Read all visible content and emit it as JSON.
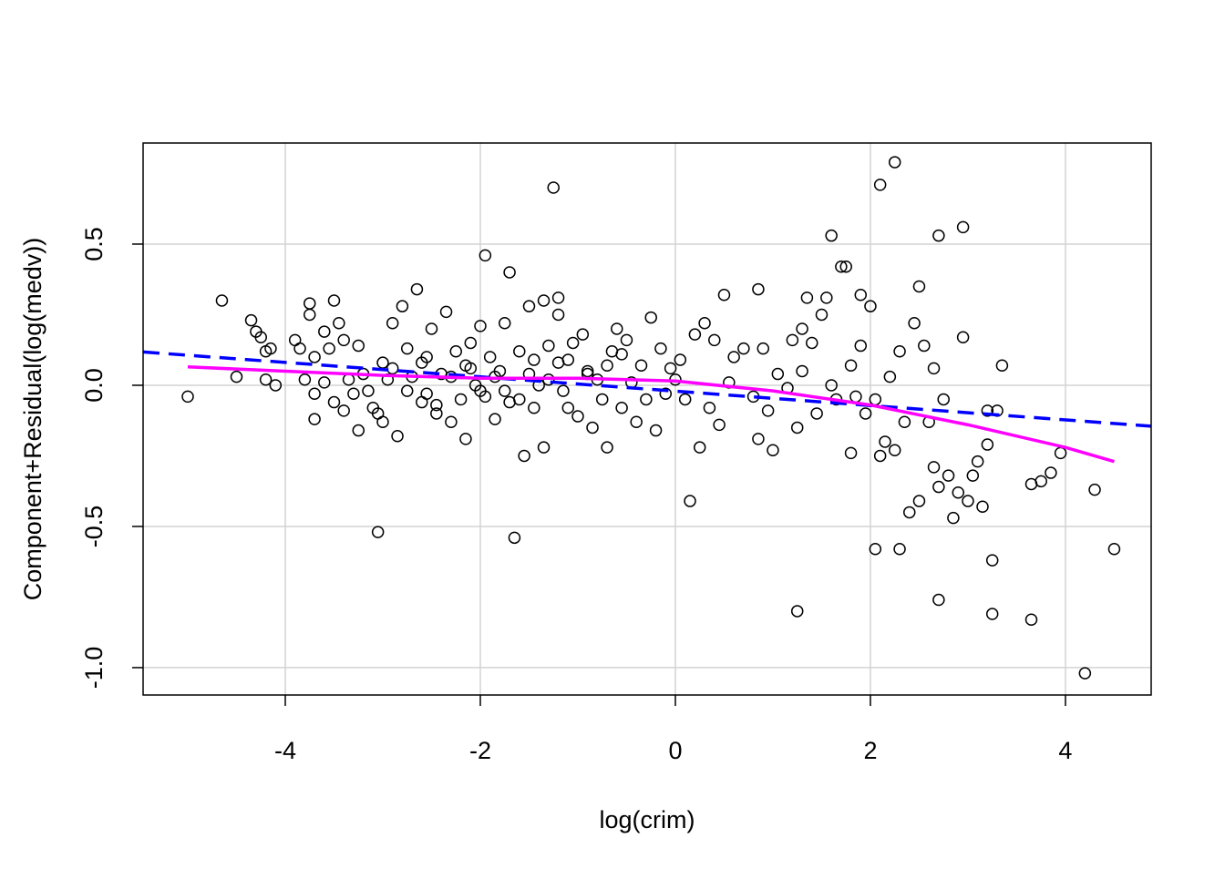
{
  "chart_data": {
    "type": "scatter",
    "xlabel": "log(crim)",
    "ylabel": "Component+Residual(log(medv))",
    "xlim": [
      -5.458,
      4.879
    ],
    "ylim": [
      -1.097,
      0.858
    ],
    "xticks": [
      -4,
      -2,
      0,
      2,
      4
    ],
    "yticks": [
      {
        "value": -1,
        "label": "-1.0"
      },
      -0.5,
      {
        "value": 0,
        "label": "0.0"
      },
      0.5
    ],
    "grid": true,
    "color": "#000000",
    "x": [
      -5.0,
      -4.65,
      -4.5,
      -4.35,
      -4.3,
      -4.25,
      -4.2,
      -4.15,
      -4.1,
      -4.2,
      -3.9,
      -3.85,
      -3.8,
      -3.75,
      -3.75,
      -3.7,
      -3.6,
      -3.7,
      -3.7,
      -3.55,
      -3.5,
      -3.45,
      -3.4,
      -3.5,
      -3.4,
      -3.3,
      -3.25,
      -3.25,
      -3.2,
      -3.1,
      -3.0,
      -3.0,
      -3.05,
      -2.95,
      -2.9,
      -2.85,
      -2.8,
      -2.75,
      -2.7,
      -2.65,
      -2.6,
      -2.55,
      -2.5,
      -2.45,
      -2.4,
      -2.35,
      -2.3,
      -2.25,
      -2.2,
      -2.15,
      -2.1,
      -2.05,
      -2.0,
      -1.95,
      -1.95,
      -1.9,
      -1.85,
      -1.8,
      -1.75,
      -1.7,
      -1.7,
      -1.65,
      -1.6,
      -1.55,
      -1.5,
      -1.45,
      -1.4,
      -1.35,
      -1.35,
      -1.3,
      -1.25,
      -1.2,
      -1.2,
      -1.15,
      -1.1,
      -1.05,
      -1.0,
      -0.95,
      -0.9,
      -0.85,
      -0.8,
      -0.75,
      -0.7,
      -0.65,
      -0.6,
      -0.55,
      -0.5,
      -0.45,
      -0.4,
      -0.35,
      -0.3,
      -0.25,
      -0.2,
      -0.15,
      -0.1,
      -0.05,
      0.0,
      0.05,
      0.1,
      0.15,
      0.2,
      0.25,
      0.3,
      0.35,
      0.4,
      0.45,
      0.5,
      0.55,
      0.6,
      0.7,
      0.8,
      0.85,
      0.85,
      0.9,
      0.95,
      1.0,
      1.05,
      1.15,
      1.2,
      1.25,
      1.25,
      1.3,
      1.3,
      1.35,
      1.4,
      1.45,
      1.5,
      1.55,
      1.6,
      1.6,
      1.65,
      1.7,
      1.75,
      1.8,
      1.8,
      1.85,
      1.9,
      1.9,
      1.95,
      2.0,
      2.05,
      2.05,
      2.1,
      2.1,
      2.15,
      2.2,
      2.25,
      2.25,
      2.3,
      2.3,
      2.35,
      2.4,
      2.45,
      2.5,
      2.5,
      2.55,
      2.6,
      2.65,
      2.65,
      2.7,
      2.7,
      2.7,
      2.75,
      2.8,
      2.85,
      2.9,
      2.95,
      2.95,
      3.0,
      3.05,
      3.1,
      3.15,
      3.2,
      3.2,
      3.25,
      3.25,
      3.3,
      3.35,
      3.65,
      3.65,
      3.75,
      3.85,
      3.95,
      4.2,
      4.3,
      4.5,
      -3.35,
      -3.15,
      -2.9,
      -2.75,
      -2.6,
      -2.45,
      -2.3,
      -2.15,
      -2.0,
      -1.85,
      -1.6,
      -1.45,
      -1.3,
      -1.1,
      -0.9,
      -0.7,
      -0.55,
      -3.6,
      -3.05,
      -2.55,
      -2.1,
      -1.75,
      -1.5,
      -1.2
    ],
    "values": [
      -0.04,
      0.3,
      0.03,
      0.23,
      0.19,
      0.17,
      0.12,
      0.13,
      0.0,
      0.02,
      0.16,
      0.13,
      0.02,
      0.29,
      0.25,
      0.1,
      0.19,
      -0.12,
      -0.03,
      0.13,
      0.3,
      0.22,
      0.16,
      -0.06,
      -0.09,
      -0.03,
      0.14,
      -0.16,
      0.04,
      -0.08,
      -0.13,
      0.08,
      -0.52,
      0.02,
      0.22,
      -0.18,
      0.28,
      0.13,
      0.03,
      0.34,
      -0.06,
      0.1,
      0.2,
      -0.1,
      0.04,
      0.26,
      -0.13,
      0.12,
      -0.05,
      -0.19,
      0.15,
      0.0,
      0.21,
      -0.04,
      0.46,
      0.1,
      -0.12,
      0.05,
      0.22,
      0.4,
      -0.06,
      -0.54,
      0.12,
      -0.25,
      0.28,
      -0.08,
      0.0,
      0.3,
      -0.22,
      0.14,
      0.7,
      0.31,
      0.25,
      -0.02,
      0.09,
      0.15,
      -0.11,
      0.18,
      0.04,
      -0.15,
      0.02,
      -0.05,
      -0.22,
      0.12,
      0.2,
      -0.08,
      0.16,
      0.01,
      -0.13,
      0.07,
      -0.05,
      0.24,
      -0.16,
      0.13,
      -0.03,
      0.06,
      0.02,
      0.09,
      -0.05,
      -0.41,
      0.18,
      -0.22,
      0.22,
      -0.08,
      0.16,
      -0.14,
      0.32,
      0.01,
      0.1,
      0.13,
      -0.04,
      0.34,
      -0.19,
      0.13,
      -0.09,
      -0.23,
      0.04,
      -0.01,
      0.16,
      -0.8,
      -0.15,
      0.2,
      0.05,
      0.31,
      0.15,
      -0.1,
      0.25,
      0.31,
      0.0,
      0.53,
      -0.05,
      0.42,
      0.42,
      0.07,
      -0.24,
      -0.04,
      0.32,
      0.14,
      -0.1,
      0.28,
      -0.58,
      -0.05,
      0.71,
      -0.25,
      -0.2,
      0.03,
      0.79,
      -0.23,
      -0.58,
      0.12,
      -0.13,
      -0.45,
      0.22,
      -0.41,
      0.35,
      0.14,
      -0.13,
      -0.29,
      0.06,
      -0.76,
      0.53,
      -0.36,
      -0.05,
      -0.32,
      -0.47,
      -0.38,
      0.56,
      0.17,
      -0.41,
      -0.32,
      -0.27,
      -0.43,
      -0.09,
      -0.21,
      -0.62,
      -0.81,
      -0.09,
      0.07,
      -0.35,
      -0.83,
      -0.34,
      -0.31,
      -0.24,
      -1.02,
      -0.37,
      -0.58,
      0.02,
      -0.02,
      0.06,
      -0.02,
      0.08,
      -0.07,
      0.03,
      0.07,
      -0.02,
      0.03,
      -0.05,
      0.09,
      0.02,
      -0.08,
      0.05,
      0.07,
      0.11,
      0.01,
      -0.1,
      -0.03,
      0.06,
      -0.02,
      0.04,
      0.08
    ],
    "lines": [
      {
        "color": "#0000ff",
        "dashed": true,
        "x": [
          -5.458,
          4.879
        ],
        "values": [
          0.118,
          -0.145
        ]
      },
      {
        "color": "#ff00ff",
        "dashed": false,
        "x": [
          -5,
          -4,
          -3,
          -2,
          -1,
          0,
          1,
          2,
          3,
          4,
          4.5
        ],
        "values": [
          0.065,
          0.05,
          0.035,
          0.025,
          0.025,
          0.015,
          -0.02,
          -0.07,
          -0.14,
          -0.22,
          -0.27
        ]
      }
    ]
  }
}
